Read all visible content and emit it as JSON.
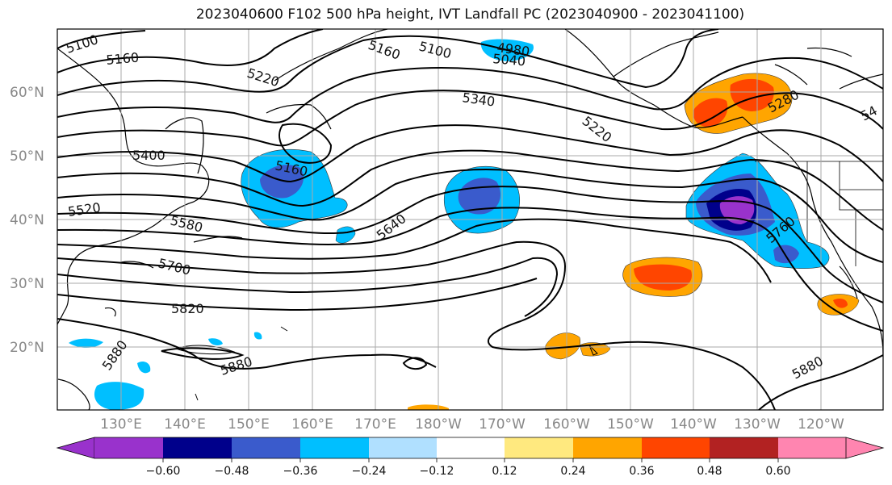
{
  "title": "2023040600 F102 500 hPa height, IVT Landfall PC (2023040900 - 2023041100)",
  "map": {
    "latitude_labels": [
      "60°N",
      "50°N",
      "40°N",
      "30°N",
      "20°N"
    ],
    "longitude_labels": [
      "130°E",
      "140°E",
      "150°E",
      "160°E",
      "170°E",
      "180°W",
      "170°W",
      "160°W",
      "150°W",
      "140°W",
      "130°W",
      "120°W"
    ],
    "contour_labels": [
      {
        "text": "5100"
      },
      {
        "text": "5160"
      },
      {
        "text": "5220"
      },
      {
        "text": "5160"
      },
      {
        "text": "5100"
      },
      {
        "text": "4980"
      },
      {
        "text": "5040"
      },
      {
        "text": "5340"
      },
      {
        "text": "5220"
      },
      {
        "text": "5280"
      },
      {
        "text": "54"
      },
      {
        "text": "5400"
      },
      {
        "text": "5160"
      },
      {
        "text": "5520"
      },
      {
        "text": "5580"
      },
      {
        "text": "5640"
      },
      {
        "text": "5700"
      },
      {
        "text": "5760"
      },
      {
        "text": "5820"
      },
      {
        "text": "5880"
      },
      {
        "text": "5880"
      },
      {
        "text": "5880"
      }
    ]
  },
  "colorbar": {
    "labels": [
      "−0.60",
      "−0.48",
      "−0.36",
      "−0.24",
      "−0.12",
      "0.12",
      "0.24",
      "0.36",
      "0.48",
      "0.60"
    ],
    "colors": [
      "#9932CC",
      "#00008B",
      "#3A5BCC",
      "#00BFFF",
      "#B0E0FF",
      "#FFFFFF",
      "#FFE97F",
      "#FFA500",
      "#FF4500",
      "#B22222",
      "#FF85B0"
    ]
  }
}
